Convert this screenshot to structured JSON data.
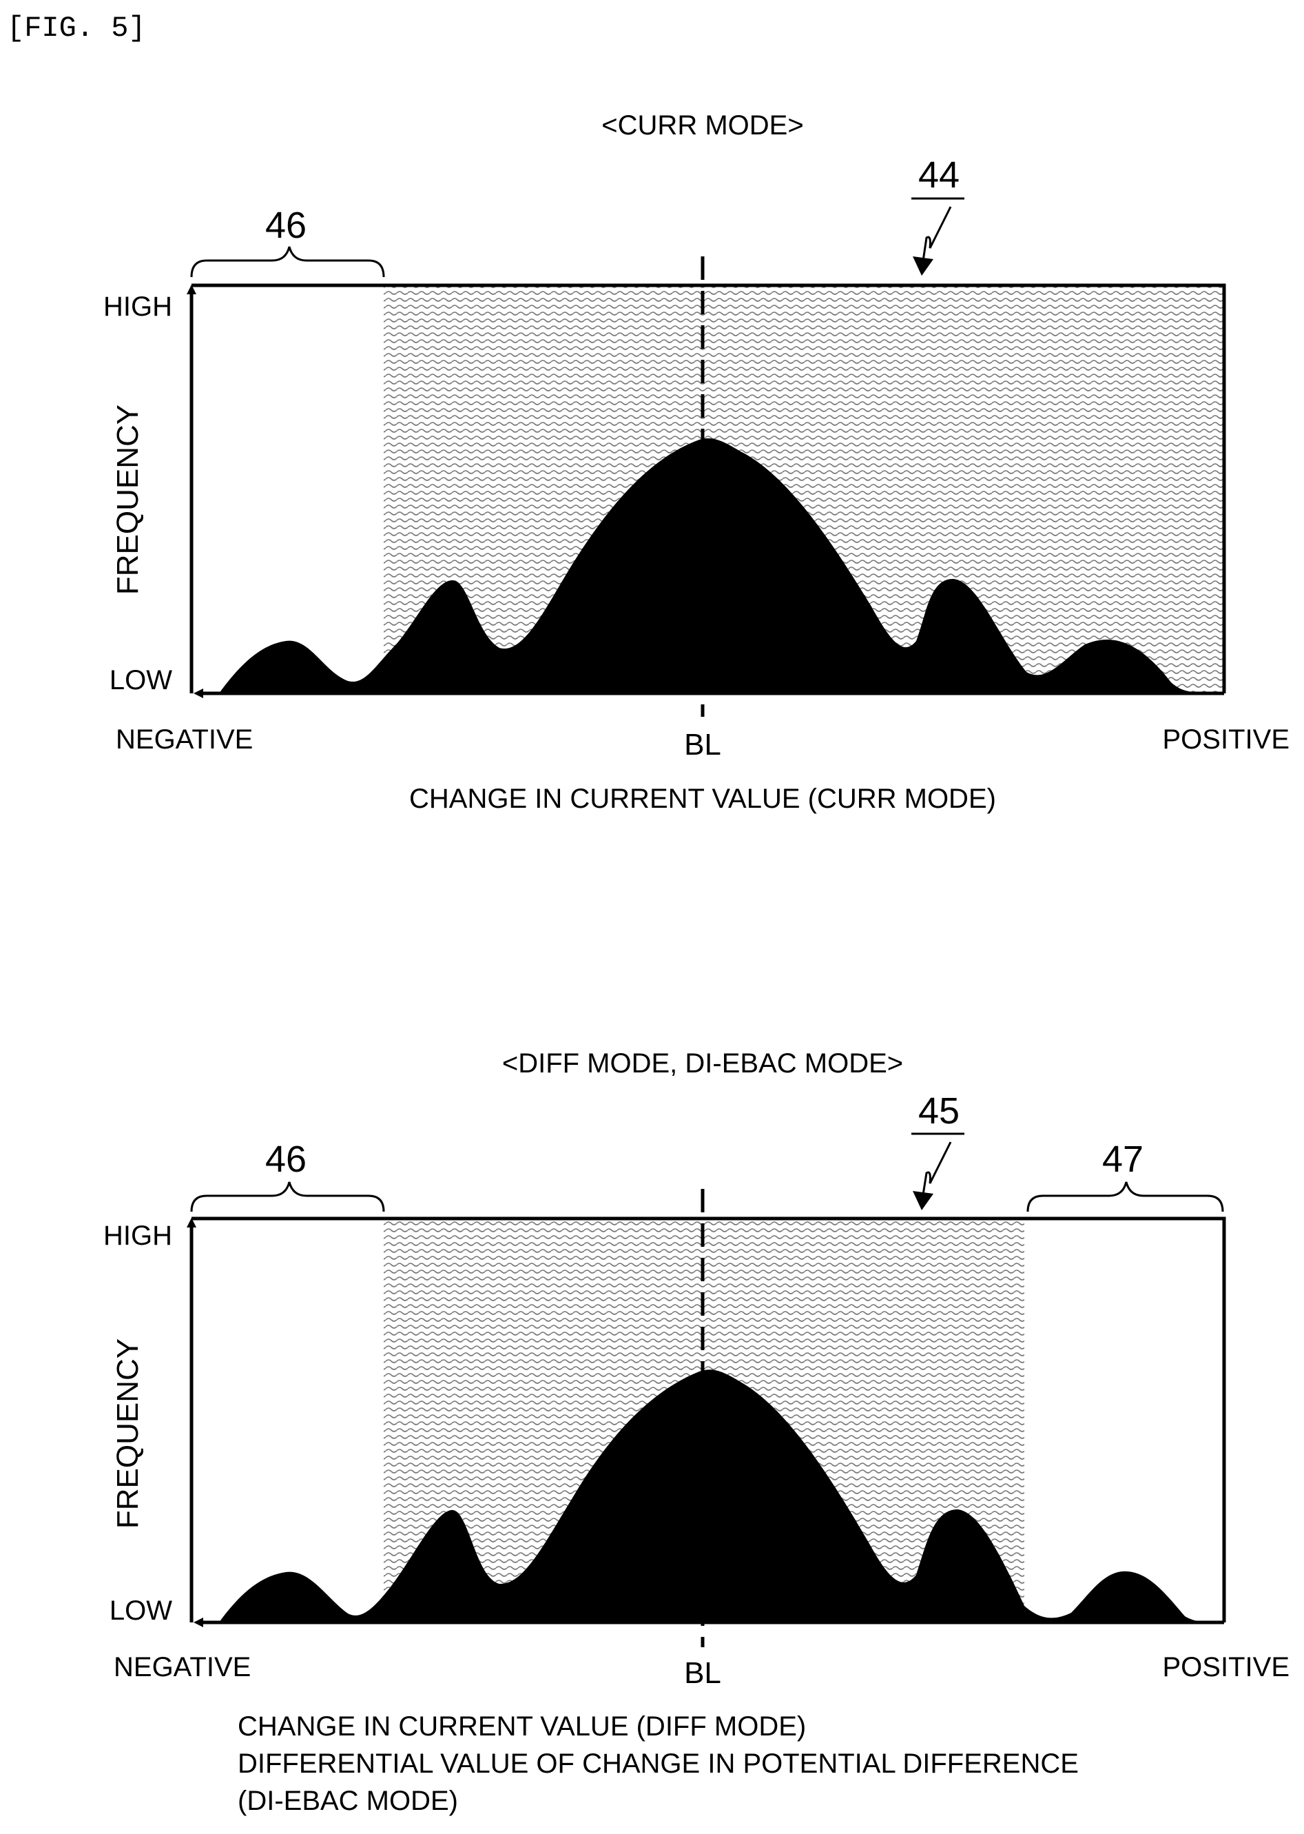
{
  "figure_label": "[FIG. 5]",
  "colors": {
    "ink": "#000000",
    "background": "#ffffff",
    "region_hatch": "#7a7a7a"
  },
  "panels": [
    {
      "mode_title": "<CURR MODE>",
      "ref_region": "44",
      "ref_excluded_left": "46",
      "ref_excluded_right": "",
      "y_axis_label": "FREQUENCY",
      "y_high": "HIGH",
      "y_low": "LOW",
      "x_negative": "NEGATIVE",
      "x_center": "BL",
      "x_positive": "POSITIVE",
      "x_axis_caption": [
        "CHANGE IN CURRENT VALUE (CURR MODE)"
      ]
    },
    {
      "mode_title": "<DIFF MODE, DI-EBAC MODE>",
      "ref_region": "45",
      "ref_excluded_left": "46",
      "ref_excluded_right": "47",
      "y_axis_label": "FREQUENCY",
      "y_high": "HIGH",
      "y_low": "LOW",
      "x_negative": "NEGATIVE",
      "x_center": "BL",
      "x_positive": "POSITIVE",
      "x_axis_caption": [
        "CHANGE IN CURRENT VALUE (DIFF MODE)",
        "DIFFERENTIAL VALUE OF CHANGE IN POTENTIAL DIFFERENCE",
        "(DI-EBAC MODE)"
      ]
    }
  ]
}
